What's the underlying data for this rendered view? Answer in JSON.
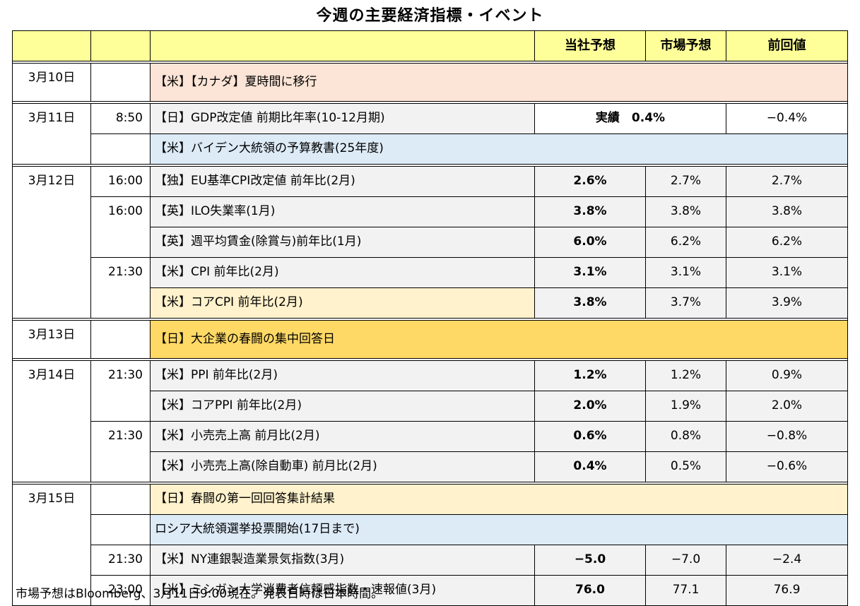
{
  "title": "今週の主要経済指標・イベント",
  "header": {
    "date": "",
    "time": "",
    "event": "",
    "own": "当社予想",
    "market": "市場予想",
    "previous": "前回値"
  },
  "rows": [
    {
      "date": "3月10日",
      "time": "",
      "event": "【米】【カナダ】夏時間に移行",
      "own": "",
      "market": "",
      "previous": ""
    },
    {
      "date": "3月11日",
      "time": "8:50",
      "event": "【日】GDP改定値 前期比年率(10-12月期)",
      "actual": "実績　0.4%",
      "previous": "−0.4%"
    },
    {
      "date": "",
      "time": "",
      "event": "【米】バイデン大統領の予算教書(25年度)",
      "own": "",
      "market": "",
      "previous": ""
    },
    {
      "date": "3月12日",
      "time": "16:00",
      "event": "【独】EU基準CPI改定値 前年比(2月)",
      "own": "2.6%",
      "market": "2.7%",
      "previous": "2.7%"
    },
    {
      "date": "",
      "time": "16:00",
      "event": "【英】ILO失業率(1月)",
      "own": "3.8%",
      "market": "3.8%",
      "previous": "3.8%"
    },
    {
      "date": "",
      "time": "",
      "event": "【英】週平均賃金(除賞与)前年比(1月)",
      "own": "6.0%",
      "market": "6.2%",
      "previous": "6.2%"
    },
    {
      "date": "",
      "time": "21:30",
      "event": "【米】CPI 前年比(2月)",
      "own": "3.1%",
      "market": "3.1%",
      "previous": "3.1%"
    },
    {
      "date": "",
      "time": "",
      "event": "【米】コアCPI 前年比(2月)",
      "own": "3.8%",
      "market": "3.7%",
      "previous": "3.9%"
    },
    {
      "date": "3月13日",
      "time": "",
      "event": "【日】大企業の春闘の集中回答日",
      "own": "",
      "market": "",
      "previous": ""
    },
    {
      "date": "3月14日",
      "time": "21:30",
      "event": "【米】PPI 前年比(2月)",
      "own": "1.2%",
      "market": "1.2%",
      "previous": "0.9%"
    },
    {
      "date": "",
      "time": "",
      "event": "【米】コアPPI 前年比(2月)",
      "own": "2.0%",
      "market": "1.9%",
      "previous": "2.0%"
    },
    {
      "date": "",
      "time": "21:30",
      "event": "【米】小売売上高 前月比(2月)",
      "own": "0.6%",
      "market": "0.8%",
      "previous": "−0.8%"
    },
    {
      "date": "",
      "time": "",
      "event": "【米】小売売上高(除自動車) 前月比(2月)",
      "own": "0.4%",
      "market": "0.5%",
      "previous": "−0.6%"
    },
    {
      "date": "3月15日",
      "time": "",
      "event": "【日】春闘の第一回回答集計結果",
      "own": "",
      "market": "",
      "previous": ""
    },
    {
      "date": "",
      "time": "",
      "event": "ロシア大統領選挙投票開始(17日まで)",
      "own": "",
      "market": "",
      "previous": ""
    },
    {
      "date": "",
      "time": "21:30",
      "event": "【米】NY連銀製造業景気指数(3月)",
      "own": "−5.0",
      "market": "−7.0",
      "previous": "−2.4"
    },
    {
      "date": "",
      "time": "23:00",
      "event": "【米】ミシガン大学消費者信頼感指数・速報値(3月)",
      "own": "76.0",
      "market": "77.1",
      "previous": "76.9"
    }
  ],
  "footnote": "市場予想はBloomberg、3月11日9:00現在。発表日時は日本時間。",
  "colors": {
    "header": "#ffff99",
    "pink": "#fce4d6",
    "gray": "#f2f2f2",
    "blue": "#ddebf7",
    "cream": "#fff2cc",
    "gold": "#ffd966"
  }
}
